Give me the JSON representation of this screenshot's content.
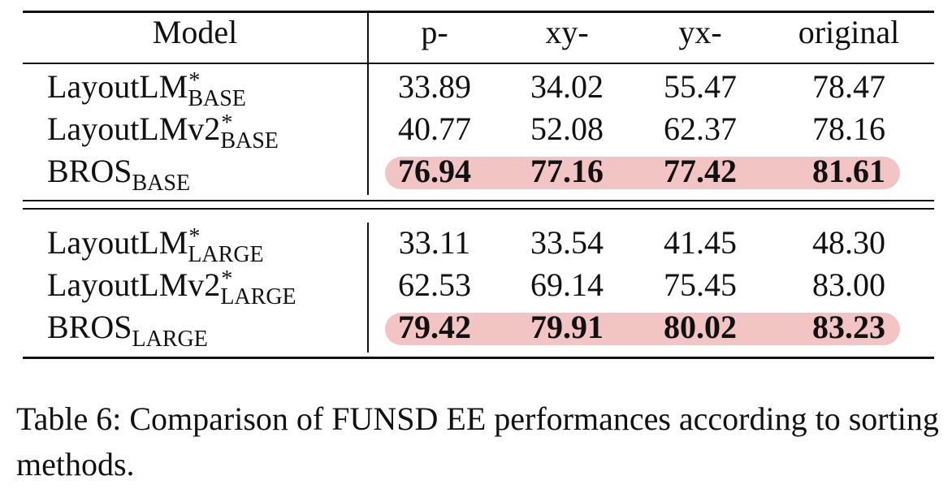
{
  "table": {
    "header": [
      "Model",
      "p-",
      "xy-",
      "yx-",
      "original"
    ],
    "groups": [
      [
        {
          "name": "LayoutLM",
          "sup": "*",
          "sub": "BASE",
          "values": [
            "33.89",
            "34.02",
            "55.47",
            "78.47"
          ]
        },
        {
          "name": "LayoutLMv2",
          "sup": "*",
          "sub": "BASE",
          "values": [
            "40.77",
            "52.08",
            "62.37",
            "78.16"
          ]
        },
        {
          "name": "BROS",
          "sub": "BASE",
          "values": [
            "76.94",
            "77.16",
            "77.42",
            "81.61"
          ],
          "highlight": true
        }
      ],
      [
        {
          "name": "LayoutLM",
          "sup": "*",
          "sub": "LARGE",
          "values": [
            "33.11",
            "33.54",
            "41.45",
            "48.30"
          ]
        },
        {
          "name": "LayoutLMv2",
          "sup": "*",
          "sub": "LARGE",
          "values": [
            "62.53",
            "69.14",
            "75.45",
            "83.00"
          ]
        },
        {
          "name": "BROS",
          "sub": "LARGE",
          "values": [
            "79.42",
            "79.91",
            "80.02",
            "83.23"
          ],
          "highlight": true
        }
      ]
    ]
  },
  "caption": "Table 6: Comparison of FUNSD EE performances according to sorting methods."
}
